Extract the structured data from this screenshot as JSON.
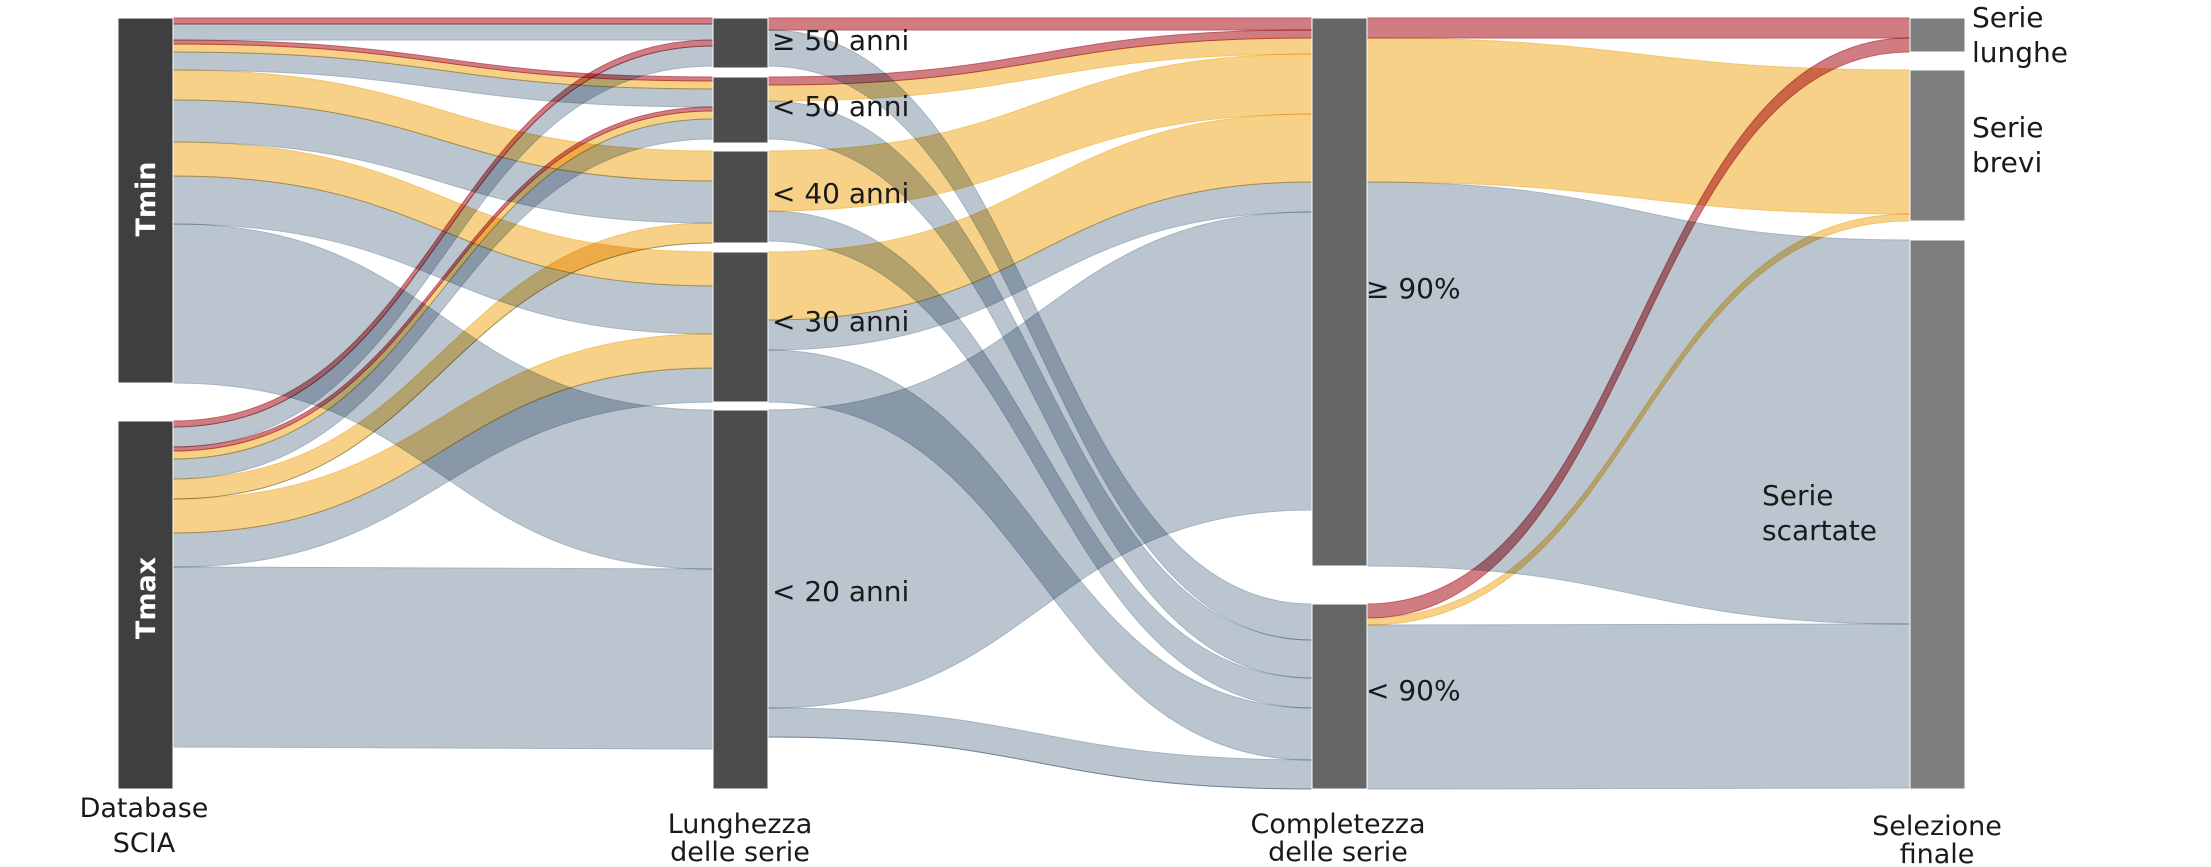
{
  "chart_data": {
    "type": "alluvial",
    "axes": [
      {
        "id": "db",
        "label": [
          "Database",
          "SCIA"
        ]
      },
      {
        "id": "len",
        "label": [
          "Lunghezza",
          "delle serie"
        ]
      },
      {
        "id": "comp",
        "label": [
          "Completezza",
          "delle serie"
        ]
      },
      {
        "id": "sel",
        "label": [
          "Selezione",
          "finale"
        ]
      }
    ],
    "nodes": {
      "db": [
        {
          "id": "tmin",
          "label": "Tmin"
        },
        {
          "id": "tmax",
          "label": "Tmax"
        }
      ],
      "len": [
        {
          "id": "l50p",
          "label": "≥ 50 anni"
        },
        {
          "id": "l50",
          "label": "< 50 anni"
        },
        {
          "id": "l40",
          "label": "< 40 anni"
        },
        {
          "id": "l30",
          "label": "< 30 anni"
        },
        {
          "id": "l20",
          "label": "< 20 anni"
        }
      ],
      "comp": [
        {
          "id": "c90p",
          "label": "≥ 90%"
        },
        {
          "id": "c90",
          "label": "< 90%"
        }
      ],
      "sel": [
        {
          "id": "long",
          "label": [
            "Serie",
            "lunghe"
          ]
        },
        {
          "id": "short",
          "label": [
            "Serie",
            "brevi"
          ]
        },
        {
          "id": "disc",
          "label": [
            "Serie",
            "scartate"
          ]
        }
      ]
    },
    "flow_categories": [
      {
        "id": "long",
        "color": "#c0505a"
      },
      {
        "id": "short",
        "color": "#f3c15f"
      },
      {
        "id": "disc",
        "color": "#9fafbc"
      }
    ],
    "node_colors": {
      "db": "#3f3f3f",
      "len": "#4d4d4d",
      "comp": "#666666",
      "sel": "#7d7d7d"
    }
  }
}
